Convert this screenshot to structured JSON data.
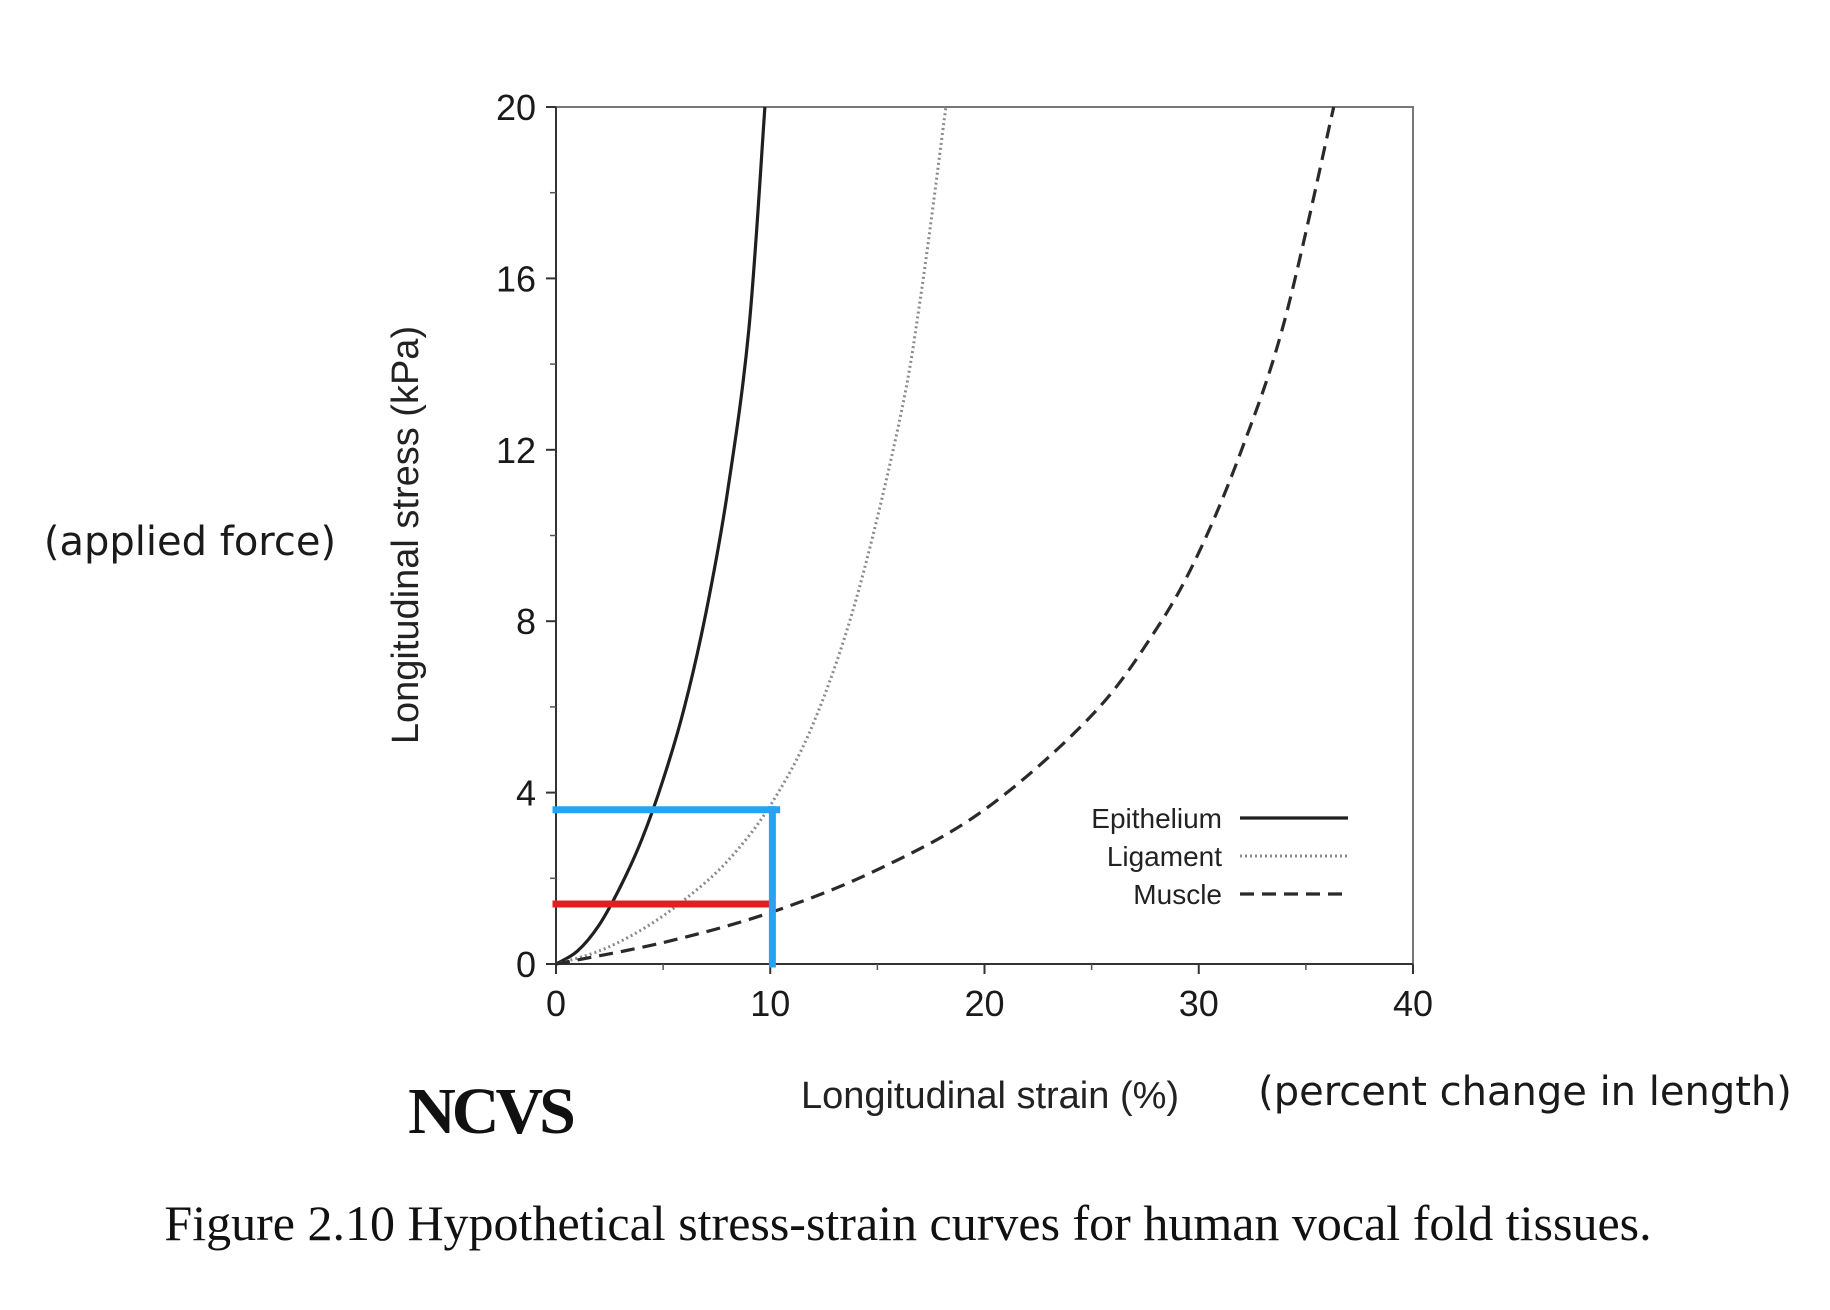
{
  "chart_data": {
    "type": "line",
    "xlabel": "Longitudinal strain (%)",
    "ylabel": "Longitudinal stress (kPa)",
    "xlim": [
      0,
      40
    ],
    "ylim": [
      0,
      20
    ],
    "xticks": [
      0,
      10,
      20,
      30,
      40
    ],
    "yticks": [
      0,
      4,
      8,
      12,
      16,
      20
    ],
    "grid": false,
    "legend_position": "bottom-right",
    "series": [
      {
        "name": "Epithelium",
        "style": "solid",
        "x": [
          0,
          1,
          2,
          3,
          4,
          5,
          6,
          7,
          8,
          9,
          9.75
        ],
        "y": [
          0,
          0.3,
          0.9,
          1.8,
          2.9,
          4.3,
          6.0,
          8.2,
          11.0,
          14.8,
          20
        ]
      },
      {
        "name": "Ligament",
        "style": "dotted",
        "x": [
          0,
          2,
          4,
          6,
          8,
          10,
          12,
          14,
          16,
          17,
          18.2
        ],
        "y": [
          0,
          0.3,
          0.8,
          1.5,
          2.4,
          3.7,
          5.6,
          8.5,
          12.6,
          15.5,
          20
        ]
      },
      {
        "name": "Muscle",
        "style": "dashed",
        "x": [
          0,
          5,
          10,
          15,
          20,
          25,
          28,
          30,
          32,
          34,
          36.3
        ],
        "y": [
          0,
          0.5,
          1.2,
          2.2,
          3.6,
          5.8,
          7.8,
          9.6,
          12.0,
          15.0,
          20
        ]
      }
    ],
    "annotations": [
      {
        "color": "#e02020",
        "orientation": "horizontal",
        "x": [
          0,
          10
        ],
        "y": 1.4
      },
      {
        "color": "#29a3f0",
        "orientation": "horizontal",
        "x": [
          0,
          10.3
        ],
        "y": 3.6
      },
      {
        "color": "#29a3f0",
        "orientation": "vertical",
        "x": 10.1,
        "y": [
          0,
          3.6
        ]
      }
    ]
  },
  "notes": {
    "y_note": "(applied force)",
    "x_note": "(percent change in length)"
  },
  "logo": "NCVS",
  "caption": "Figure 2.10 Hypothetical stress-strain curves for human vocal fold tissues."
}
